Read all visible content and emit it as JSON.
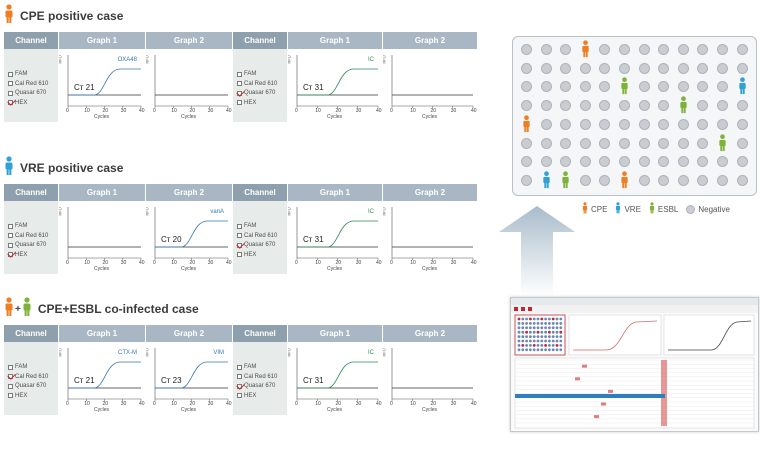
{
  "sections": [
    {
      "title": "CPE positive case",
      "headers": [
        "Channel",
        "Graph 1",
        "Graph 2",
        "Channel",
        "Graph 1",
        "Graph 2"
      ],
      "channels_left": [
        {
          "label": "FAM",
          "checked": false
        },
        {
          "label": "Cal Red 610",
          "checked": false
        },
        {
          "label": "Quasar 670",
          "checked": false
        },
        {
          "label": "HEX",
          "checked": true
        }
      ],
      "channels_right": [
        {
          "label": "FAM",
          "checked": false
        },
        {
          "label": "Cal Red 610",
          "checked": false
        },
        {
          "label": "Quasar 670",
          "checked": true
        },
        {
          "label": "HEX",
          "checked": false
        }
      ],
      "graphs": [
        {
          "slot": "l1",
          "curve": true,
          "ct": "Cт 21",
          "label": "OXA48",
          "label_color": "#3a78b4"
        },
        {
          "slot": "l2",
          "curve": false
        },
        {
          "slot": "r1",
          "curve": true,
          "ct": "Cт 31",
          "label": "IC",
          "label_color": "#2f8a5a"
        },
        {
          "slot": "r2",
          "curve": false
        }
      ]
    },
    {
      "title": "VRE positive case",
      "headers": [
        "Channel",
        "Graph 1",
        "Graph 2",
        "Channel",
        "Graph 1",
        "Graph 2"
      ],
      "channels_left": [
        {
          "label": "FAM",
          "checked": false
        },
        {
          "label": "Cal Red 610",
          "checked": false
        },
        {
          "label": "Quasar 670",
          "checked": false
        },
        {
          "label": "HEX",
          "checked": true
        }
      ],
      "channels_right": [
        {
          "label": "FAM",
          "checked": false
        },
        {
          "label": "Cal Red 610",
          "checked": false
        },
        {
          "label": "Quasar 670",
          "checked": true
        },
        {
          "label": "HEX",
          "checked": false
        }
      ],
      "graphs": [
        {
          "slot": "l1",
          "curve": false
        },
        {
          "slot": "l2",
          "curve": true,
          "ct": "Cт 20",
          "label": "vanA",
          "label_color": "#3a78b4"
        },
        {
          "slot": "r1",
          "curve": true,
          "ct": "Cт 31",
          "label": "IC",
          "label_color": "#2f8a5a"
        },
        {
          "slot": "r2",
          "curve": false
        }
      ]
    },
    {
      "title": "CPE+ESBL co-infected case",
      "headers": [
        "Channel",
        "Graph 1",
        "Graph 2",
        "Channel",
        "Graph 1",
        "Graph 2"
      ],
      "channels_left": [
        {
          "label": "FAM",
          "checked": false
        },
        {
          "label": "Cal Red 610",
          "checked": true
        },
        {
          "label": "Quasar 670",
          "checked": false
        },
        {
          "label": "HEX",
          "checked": false
        }
      ],
      "channels_right": [
        {
          "label": "FAM",
          "checked": false
        },
        {
          "label": "Cal Red 610",
          "checked": false
        },
        {
          "label": "Quasar 670",
          "checked": true
        },
        {
          "label": "HEX",
          "checked": false
        }
      ],
      "graphs": [
        {
          "slot": "l1",
          "curve": true,
          "ct": "Cт 21",
          "label": "CTX-M",
          "label_color": "#3a78b4"
        },
        {
          "slot": "l2",
          "curve": true,
          "ct": "Cт 23",
          "label": "VIM",
          "label_color": "#3a78b4"
        },
        {
          "slot": "r1",
          "curve": true,
          "ct": "Cт 31",
          "label": "IC",
          "label_color": "#2f8a5a"
        },
        {
          "slot": "r2",
          "curve": false
        }
      ]
    }
  ],
  "axis": {
    "xlabel": "Cycles",
    "ylabel": "RFU",
    "xticks": [
      "0",
      "10",
      "20",
      "30",
      "40"
    ]
  },
  "plate": {
    "rows": 8,
    "cols": 12,
    "markers": [
      {
        "type": "CPE",
        "row": 0,
        "col": 3
      },
      {
        "type": "ESBL",
        "row": 2,
        "col": 5
      },
      {
        "type": "VRE",
        "row": 2,
        "col": 11
      },
      {
        "type": "ESBL",
        "row": 3,
        "col": 8
      },
      {
        "type": "CPE",
        "row": 4,
        "col": 0
      },
      {
        "type": "ESBL",
        "row": 5,
        "col": 10
      },
      {
        "type": "VRE",
        "row": 7,
        "col": 1
      },
      {
        "type": "ESBL",
        "row": 7,
        "col": 2
      },
      {
        "type": "CPE",
        "row": 7,
        "col": 5
      }
    ]
  },
  "legend": [
    {
      "label": "CPE",
      "color": "#ef7d22"
    },
    {
      "label": "VRE",
      "color": "#2fa1d6"
    },
    {
      "label": "ESBL",
      "color": "#7fb239"
    },
    {
      "label": "Negative",
      "color": "#c9cdd1"
    }
  ],
  "colors": {
    "CPE": "#ef7d22",
    "VRE": "#2fa1d6",
    "ESBL": "#7fb239"
  }
}
